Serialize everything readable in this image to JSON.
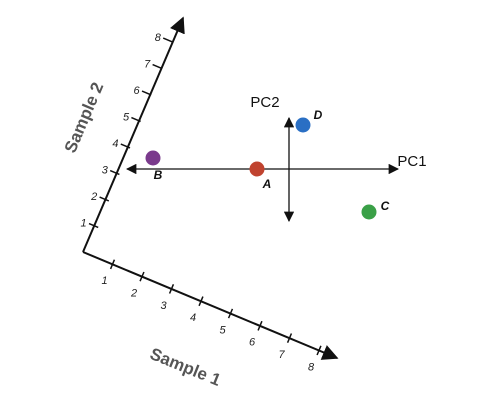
{
  "axes": {
    "sample1": {
      "label": "Sample 1",
      "ticks": [
        1,
        2,
        3,
        4,
        5,
        6,
        7,
        8
      ]
    },
    "sample2": {
      "label": "Sample 2",
      "ticks": [
        1,
        2,
        3,
        4,
        5,
        6,
        7,
        8
      ]
    }
  },
  "pc_axes": {
    "pc1": "PC1",
    "pc2": "PC2"
  },
  "points": [
    {
      "label": "A",
      "color": "#c0432f"
    },
    {
      "label": "B",
      "color": "#7a3a8c"
    },
    {
      "label": "C",
      "color": "#3aa047"
    },
    {
      "label": "D",
      "color": "#2a6fc4"
    }
  ]
}
